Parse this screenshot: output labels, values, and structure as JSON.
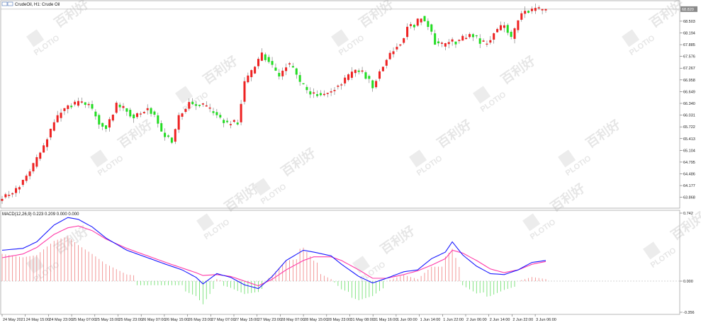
{
  "window": {
    "symbol_label": "CrudeOil, H1:  Crude Oil",
    "macd_label": "MACD(12,26,9) 0.223 0.209 0.000 0.000",
    "watermark_text": "PLOTIO",
    "watermark_cn": "百利好"
  },
  "colors": {
    "bull": "#22dd22",
    "bear": "#ee2222",
    "macd_line": "#1a1aff",
    "signal_line": "#ff3aa8",
    "hist_pos": "#f08080",
    "hist_neg": "#66dd66",
    "grid": "#cccccc",
    "price_tag": "#8a8a8a"
  },
  "chart_data": [
    {
      "type": "candlestick",
      "symbol": "CrudeOil",
      "timeframe": "H1",
      "title": "CrudeOil, H1:  Crude Oil",
      "current_price": "68.820",
      "ylim": [
        63.75,
        68.93
      ],
      "y_ticks": [
        "68.503",
        "68.194",
        "67.885",
        "67.576",
        "67.267",
        "66.958",
        "66.649",
        "66.340",
        "66.031",
        "65.722",
        "65.413",
        "65.104",
        "64.795",
        "64.486",
        "64.177",
        "63.868"
      ],
      "x_ticks": [
        "24 May 2021",
        "24 May 15:00",
        "24 May 23:00",
        "25 May 07:00",
        "25 May 15:00",
        "25 May 23:00",
        "26 May 07:00",
        "26 May 15:00",
        "26 May 23:00",
        "27 May 07:00",
        "27 May 15:00",
        "27 May 23:00",
        "28 May 07:00",
        "28 May 15:00",
        "28 May 23:00",
        "31 May 08:00",
        "31 May 16:00",
        "1 Jun 00:00",
        "1 Jun 14:00",
        "1 Jun 22:00",
        "2 Jun 06:00",
        "2 Jun 14:00",
        "2 Jun 22:00",
        "3 Jun 06:00"
      ],
      "close_anchors": [
        [
          0,
          63.85
        ],
        [
          4,
          64.05
        ],
        [
          8,
          64.55
        ],
        [
          12,
          65.2
        ],
        [
          15,
          65.85
        ],
        [
          17,
          66.1
        ],
        [
          19,
          66.25
        ],
        [
          22,
          66.35
        ],
        [
          25,
          66.3
        ],
        [
          28,
          65.85
        ],
        [
          30,
          65.7
        ],
        [
          33,
          66.3
        ],
        [
          35,
          66.2
        ],
        [
          38,
          66.0
        ],
        [
          40,
          66.05
        ],
        [
          42,
          66.25
        ],
        [
          44,
          66.0
        ],
        [
          46,
          65.6
        ],
        [
          49,
          65.3
        ],
        [
          51,
          66.0
        ],
        [
          54,
          66.35
        ],
        [
          57,
          66.3
        ],
        [
          60,
          66.15
        ],
        [
          62,
          66.0
        ],
        [
          65,
          65.8
        ],
        [
          68,
          65.85
        ],
        [
          70,
          66.9
        ],
        [
          73,
          67.3
        ],
        [
          75,
          67.65
        ],
        [
          78,
          67.3
        ],
        [
          80,
          67.05
        ],
        [
          82,
          67.35
        ],
        [
          84,
          67.25
        ],
        [
          86,
          66.9
        ],
        [
          88,
          66.65
        ],
        [
          90,
          66.6
        ],
        [
          92,
          66.55
        ],
        [
          94,
          66.6
        ],
        [
          96,
          66.75
        ],
        [
          99,
          66.95
        ],
        [
          101,
          67.15
        ],
        [
          103,
          67.2
        ],
        [
          105,
          67.05
        ],
        [
          107,
          66.8
        ],
        [
          109,
          67.15
        ],
        [
          111,
          67.5
        ],
        [
          113,
          67.75
        ],
        [
          115,
          67.9
        ],
        [
          117,
          68.35
        ],
        [
          119,
          68.4
        ],
        [
          121,
          68.6
        ],
        [
          123,
          68.4
        ],
        [
          125,
          67.95
        ],
        [
          127,
          67.85
        ],
        [
          129,
          68.0
        ],
        [
          131,
          67.95
        ],
        [
          133,
          68.05
        ],
        [
          135,
          68.2
        ],
        [
          137,
          68.05
        ],
        [
          139,
          67.9
        ],
        [
          141,
          68.05
        ],
        [
          143,
          68.3
        ],
        [
          145,
          68.4
        ],
        [
          147,
          68.05
        ],
        [
          149,
          68.55
        ],
        [
          151,
          68.78
        ],
        [
          153,
          68.8
        ],
        [
          155,
          68.8
        ],
        [
          157,
          68.82
        ]
      ],
      "n_candles": 158
    },
    {
      "type": "line",
      "title": "MACD(12,26,9) 0.223 0.209 0.000 0.000",
      "ylim": [
        -0.356,
        0.742
      ],
      "y_ticks": [
        "0.742",
        "0.000",
        "-0.356"
      ],
      "series": [
        {
          "name": "MACD",
          "anchors": [
            [
              0,
              0.33
            ],
            [
              6,
              0.35
            ],
            [
              10,
              0.42
            ],
            [
              15,
              0.6
            ],
            [
              19,
              0.68
            ],
            [
              22,
              0.66
            ],
            [
              26,
              0.58
            ],
            [
              30,
              0.46
            ],
            [
              36,
              0.33
            ],
            [
              42,
              0.25
            ],
            [
              48,
              0.17
            ],
            [
              52,
              0.12
            ],
            [
              56,
              0.04
            ],
            [
              58,
              -0.03
            ],
            [
              62,
              0.08
            ],
            [
              66,
              0.04
            ],
            [
              70,
              -0.04
            ],
            [
              74,
              -0.08
            ],
            [
              78,
              0.05
            ],
            [
              82,
              0.22
            ],
            [
              87,
              0.33
            ],
            [
              90,
              0.31
            ],
            [
              95,
              0.27
            ],
            [
              98,
              0.18
            ],
            [
              103,
              0.05
            ],
            [
              107,
              -0.02
            ],
            [
              111,
              0.03
            ],
            [
              116,
              0.1
            ],
            [
              120,
              0.12
            ],
            [
              124,
              0.24
            ],
            [
              128,
              0.31
            ],
            [
              130,
              0.42
            ],
            [
              133,
              0.28
            ],
            [
              137,
              0.16
            ],
            [
              141,
              0.08
            ],
            [
              145,
              0.07
            ],
            [
              149,
              0.12
            ],
            [
              153,
              0.2
            ],
            [
              157,
              0.22
            ]
          ]
        },
        {
          "name": "Signal",
          "anchors": [
            [
              0,
              0.25
            ],
            [
              6,
              0.29
            ],
            [
              10,
              0.36
            ],
            [
              15,
              0.5
            ],
            [
              19,
              0.57
            ],
            [
              22,
              0.59
            ],
            [
              26,
              0.54
            ],
            [
              30,
              0.45
            ],
            [
              36,
              0.35
            ],
            [
              42,
              0.27
            ],
            [
              48,
              0.19
            ],
            [
              52,
              0.14
            ],
            [
              56,
              0.09
            ],
            [
              58,
              0.06
            ],
            [
              62,
              0.07
            ],
            [
              66,
              0.05
            ],
            [
              70,
              0.0
            ],
            [
              74,
              -0.05
            ],
            [
              78,
              0.02
            ],
            [
              82,
              0.12
            ],
            [
              87,
              0.22
            ],
            [
              90,
              0.26
            ],
            [
              95,
              0.26
            ],
            [
              98,
              0.22
            ],
            [
              103,
              0.12
            ],
            [
              107,
              0.03
            ],
            [
              111,
              0.03
            ],
            [
              116,
              0.07
            ],
            [
              120,
              0.11
            ],
            [
              124,
              0.17
            ],
            [
              128,
              0.24
            ],
            [
              130,
              0.33
            ],
            [
              133,
              0.3
            ],
            [
              137,
              0.22
            ],
            [
              141,
              0.13
            ],
            [
              145,
              0.09
            ],
            [
              149,
              0.12
            ],
            [
              153,
              0.18
            ],
            [
              157,
              0.21
            ]
          ]
        }
      ]
    }
  ]
}
